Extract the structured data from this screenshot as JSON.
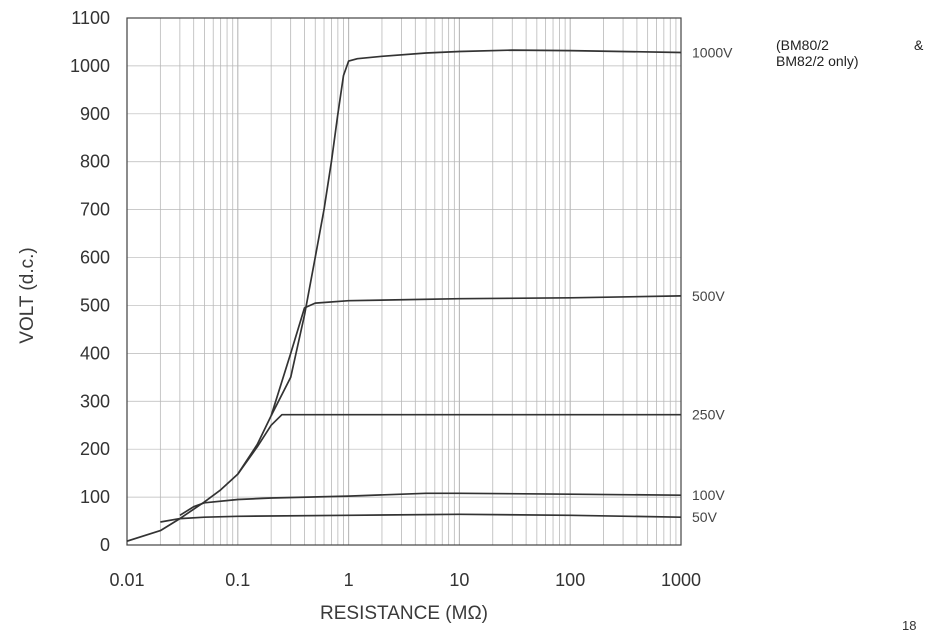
{
  "chart_data": {
    "type": "line",
    "title": "",
    "xlabel": "RESISTANCE (MΩ)",
    "ylabel": "VOLT (d.c.)",
    "xscale": "log",
    "xlim": [
      0.01,
      1000
    ],
    "ylim": [
      0,
      1100
    ],
    "x_ticks": [
      0.01,
      0.1,
      1,
      10,
      100,
      1000
    ],
    "x_tick_labels": [
      "0.01",
      "0.1",
      "1",
      "10",
      "100",
      "1000"
    ],
    "y_ticks": [
      0,
      100,
      200,
      300,
      400,
      500,
      600,
      700,
      800,
      900,
      1000,
      1100
    ],
    "y_tick_labels": [
      "0",
      "100",
      "200",
      "300",
      "400",
      "500",
      "600",
      "700",
      "800",
      "900",
      "1000",
      "1100"
    ],
    "grid": "vertical log gridlines; horizontal gridlines at 100 V steps",
    "line_color": "#333333",
    "grid_color": "#b8b8b8",
    "series": [
      {
        "name": "1000V",
        "x": [
          0.01,
          0.02,
          0.03,
          0.05,
          0.07,
          0.1,
          0.15,
          0.2,
          0.3,
          0.4,
          0.5,
          0.6,
          0.7,
          0.8,
          0.9,
          1.0,
          1.2,
          2,
          5,
          10,
          30,
          100,
          1000
        ],
        "y": [
          8,
          30,
          55,
          90,
          115,
          148,
          210,
          270,
          350,
          480,
          600,
          700,
          800,
          900,
          980,
          1010,
          1015,
          1020,
          1027,
          1030,
          1033,
          1032,
          1028
        ]
      },
      {
        "name": "500V",
        "x": [
          0.2,
          0.3,
          0.4,
          0.5,
          1,
          10,
          100,
          1000
        ],
        "y": [
          270,
          400,
          495,
          505,
          510,
          514,
          516,
          520
        ]
      },
      {
        "name": "250V",
        "x": [
          0.1,
          0.15,
          0.2,
          0.25,
          0.5,
          1,
          10,
          100,
          1000
        ],
        "y": [
          148,
          205,
          250,
          272,
          272,
          272,
          272,
          272,
          272
        ]
      },
      {
        "name": "100V",
        "x": [
          0.03,
          0.04,
          0.05,
          0.1,
          0.2,
          1,
          5,
          10,
          100,
          1000
        ],
        "y": [
          62,
          80,
          88,
          95,
          98,
          102,
          108,
          108,
          106,
          104
        ]
      },
      {
        "name": "50V",
        "x": [
          0.02,
          0.03,
          0.05,
          0.1,
          1,
          10,
          100,
          1000
        ],
        "y": [
          48,
          55,
          58,
          60,
          62,
          64,
          62,
          58
        ]
      }
    ],
    "annotations": [
      "(BM80/2",
      "&",
      "BM82/2 only)"
    ]
  },
  "page_number": "18"
}
